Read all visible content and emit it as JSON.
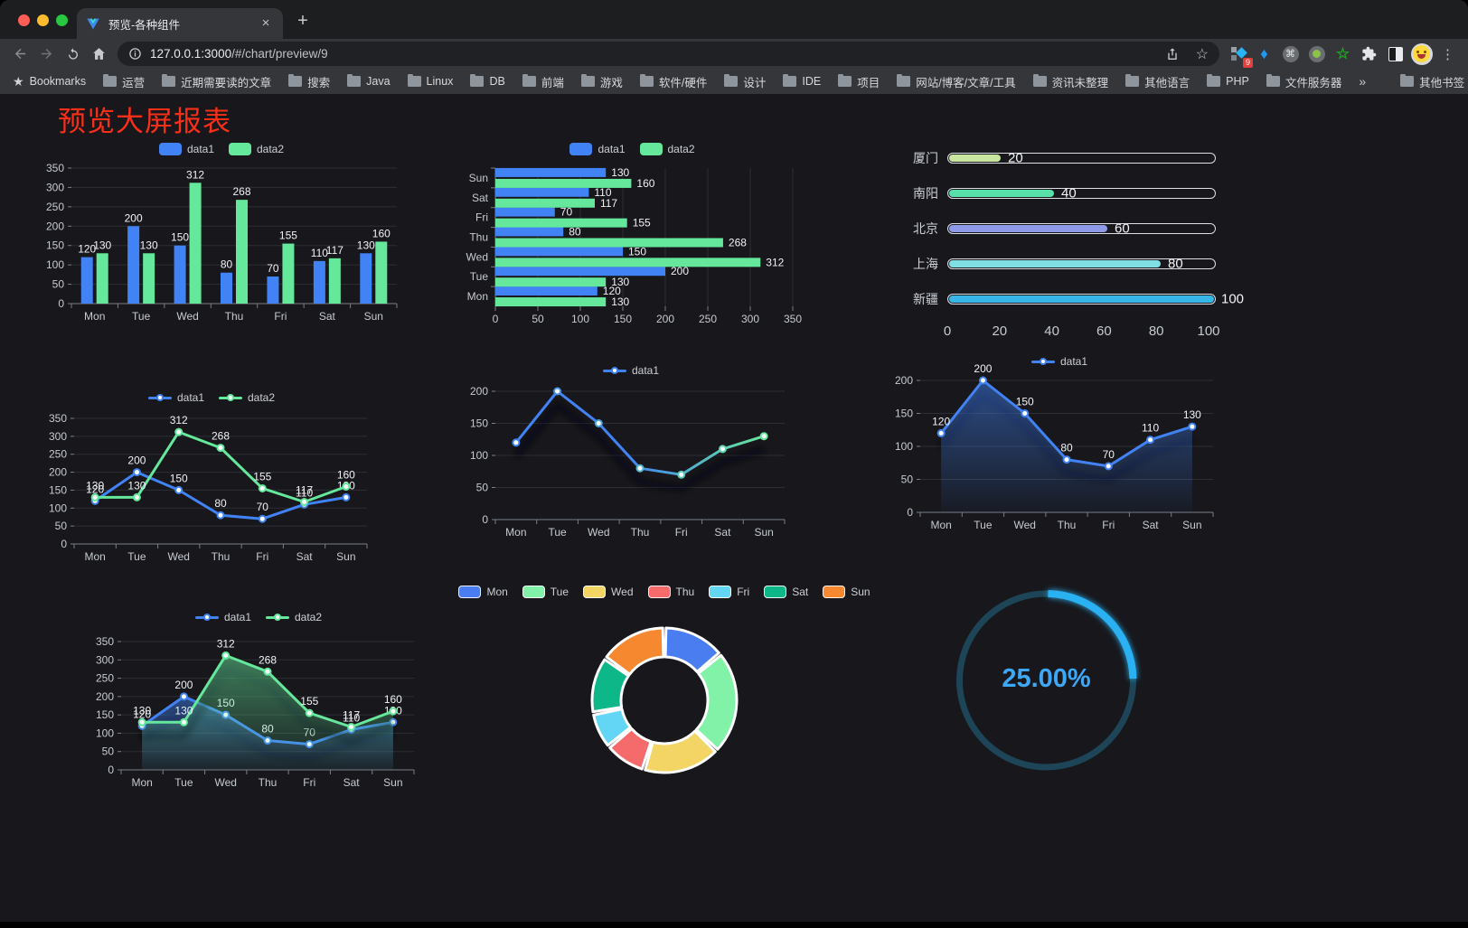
{
  "browser": {
    "tab_title": "预览-各种组件",
    "url_host": "127.0.0.1:3000",
    "url_path": "/#/chart/preview/9",
    "bookmarks_bar_label": "Bookmarks",
    "bookmark_folders": [
      "运营",
      "近期需要读的文章",
      "搜索",
      "Java",
      "Linux",
      "DB",
      "前端",
      "游戏",
      "软件/硬件",
      "设计",
      "IDE",
      "项目",
      "网站/博客/文章/工具",
      "资讯未整理",
      "其他语言",
      "PHP",
      "文件服务器"
    ],
    "other_bookmarks_label": "其他书签",
    "extension_badge_count": "9",
    "icons": {
      "close_tab": "×",
      "new_tab": "+",
      "menu": "⋮",
      "overflow": "»",
      "star_outline": "☆",
      "bookmarks_star": "★",
      "command": "⌘",
      "gem": "♦"
    }
  },
  "page": {
    "title": "预览大屏报表",
    "title_color": "#f92f17",
    "background": "#17171c"
  },
  "chart_data": [
    {
      "id": "grouped-bar",
      "type": "bar",
      "legend_position": "top",
      "value_labels": true,
      "grid": true,
      "categories": [
        "Mon",
        "Tue",
        "Wed",
        "Thu",
        "Fri",
        "Sat",
        "Sun"
      ],
      "series": [
        {
          "name": "data1",
          "color": "#4183f4",
          "values": [
            120,
            200,
            150,
            80,
            70,
            110,
            130
          ]
        },
        {
          "name": "data2",
          "color": "#66e89c",
          "values": [
            130,
            130,
            312,
            268,
            155,
            117,
            160
          ]
        }
      ],
      "ylim": [
        0,
        350
      ],
      "yticks": [
        0,
        50,
        100,
        150,
        200,
        250,
        300,
        350
      ]
    },
    {
      "id": "horizontal-bar",
      "type": "bar",
      "orientation": "horizontal",
      "legend_position": "top",
      "value_labels": true,
      "grid": true,
      "categories_bottom_to_top": [
        "Mon",
        "Tue",
        "Wed",
        "Thu",
        "Fri",
        "Sat",
        "Sun"
      ],
      "series": [
        {
          "name": "data1",
          "color": "#4183f4",
          "values": [
            120,
            200,
            150,
            80,
            70,
            110,
            130
          ]
        },
        {
          "name": "data2",
          "color": "#66e89c",
          "values": [
            130,
            130,
            312,
            268,
            155,
            117,
            160
          ]
        }
      ],
      "xlim": [
        0,
        350
      ],
      "xticks": [
        0,
        50,
        100,
        150,
        200,
        250,
        300,
        350
      ]
    },
    {
      "id": "city-progress",
      "type": "bar",
      "style": "progress",
      "items": [
        {
          "label": "厦门",
          "value": 20,
          "color": "#c8e6a0"
        },
        {
          "label": "南阳",
          "value": 40,
          "color": "#57e0a8"
        },
        {
          "label": "北京",
          "value": 60,
          "color": "#8e99e8"
        },
        {
          "label": "上海",
          "value": 80,
          "color": "#7fdfe2"
        },
        {
          "label": "新疆",
          "value": 100,
          "color": "#38b6e8"
        }
      ],
      "xlim": [
        0,
        100
      ],
      "xticks": [
        0,
        20,
        40,
        60,
        80,
        100
      ]
    },
    {
      "id": "line-two-series",
      "type": "line",
      "legend_position": "top",
      "value_labels": true,
      "grid": true,
      "categories": [
        "Mon",
        "Tue",
        "Wed",
        "Thu",
        "Fri",
        "Sat",
        "Sun"
      ],
      "series": [
        {
          "name": "data1",
          "color": "#4183f4",
          "values": [
            120,
            200,
            150,
            80,
            70,
            110,
            130
          ]
        },
        {
          "name": "data2",
          "color": "#66e89c",
          "values": [
            130,
            130,
            312,
            268,
            155,
            117,
            160
          ]
        }
      ],
      "ylim": [
        0,
        350
      ],
      "yticks": [
        0,
        50,
        100,
        150,
        200,
        250,
        300,
        350
      ]
    },
    {
      "id": "line-gradient",
      "type": "line",
      "legend_position": "top",
      "value_labels": false,
      "shadow": true,
      "grid": true,
      "categories": [
        "Mon",
        "Tue",
        "Wed",
        "Thu",
        "Fri",
        "Sat",
        "Sun"
      ],
      "series": [
        {
          "name": "data1",
          "gradient": [
            "#4183f4",
            "#66e89c"
          ],
          "color": "#4183f4",
          "values": [
            120,
            200,
            150,
            80,
            70,
            110,
            130
          ]
        }
      ],
      "ylim": [
        0,
        200
      ],
      "yticks": [
        0,
        50,
        100,
        150,
        200
      ]
    },
    {
      "id": "line-area",
      "type": "area",
      "legend_position": "top",
      "value_labels": true,
      "shadow": true,
      "grid": true,
      "categories": [
        "Mon",
        "Tue",
        "Wed",
        "Thu",
        "Fri",
        "Sat",
        "Sun"
      ],
      "series": [
        {
          "name": "data1",
          "color": "#4183f4",
          "values": [
            120,
            200,
            150,
            80,
            70,
            110,
            130
          ]
        }
      ],
      "ylim": [
        0,
        200
      ],
      "yticks": [
        0,
        50,
        100,
        150,
        200
      ]
    },
    {
      "id": "area-two-series",
      "type": "area",
      "legend_position": "top",
      "value_labels": true,
      "shadow": true,
      "grid": true,
      "categories": [
        "Mon",
        "Tue",
        "Wed",
        "Thu",
        "Fri",
        "Sat",
        "Sun"
      ],
      "series": [
        {
          "name": "data1",
          "color": "#4183f4",
          "values": [
            120,
            200,
            150,
            80,
            70,
            110,
            130
          ]
        },
        {
          "name": "data2",
          "color": "#66e89c",
          "values": [
            130,
            130,
            312,
            268,
            155,
            117,
            160
          ]
        }
      ],
      "ylim": [
        0,
        350
      ],
      "yticks": [
        0,
        50,
        100,
        150,
        200,
        250,
        300,
        350
      ]
    },
    {
      "id": "weekday-donut",
      "type": "pie",
      "shape": "donut",
      "legend_position": "top",
      "items": [
        {
          "name": "Mon",
          "value": 120,
          "color": "#4a7df0"
        },
        {
          "name": "Tue",
          "value": 200,
          "color": "#82f2a8"
        },
        {
          "name": "Wed",
          "value": 150,
          "color": "#f3d566"
        },
        {
          "name": "Thu",
          "value": 80,
          "color": "#f56a6a"
        },
        {
          "name": "Fri",
          "value": 70,
          "color": "#63d5f5"
        },
        {
          "name": "Sat",
          "value": 110,
          "color": "#0db787"
        },
        {
          "name": "Sun",
          "value": 130,
          "color": "#f6882f"
        }
      ]
    },
    {
      "id": "progress-gauge",
      "type": "gauge",
      "value_percent": 25,
      "display_text": "25.00%",
      "progress_color": "#2ab1f2",
      "track_color": "#1d4557",
      "text_color": "#3da8f5"
    }
  ]
}
